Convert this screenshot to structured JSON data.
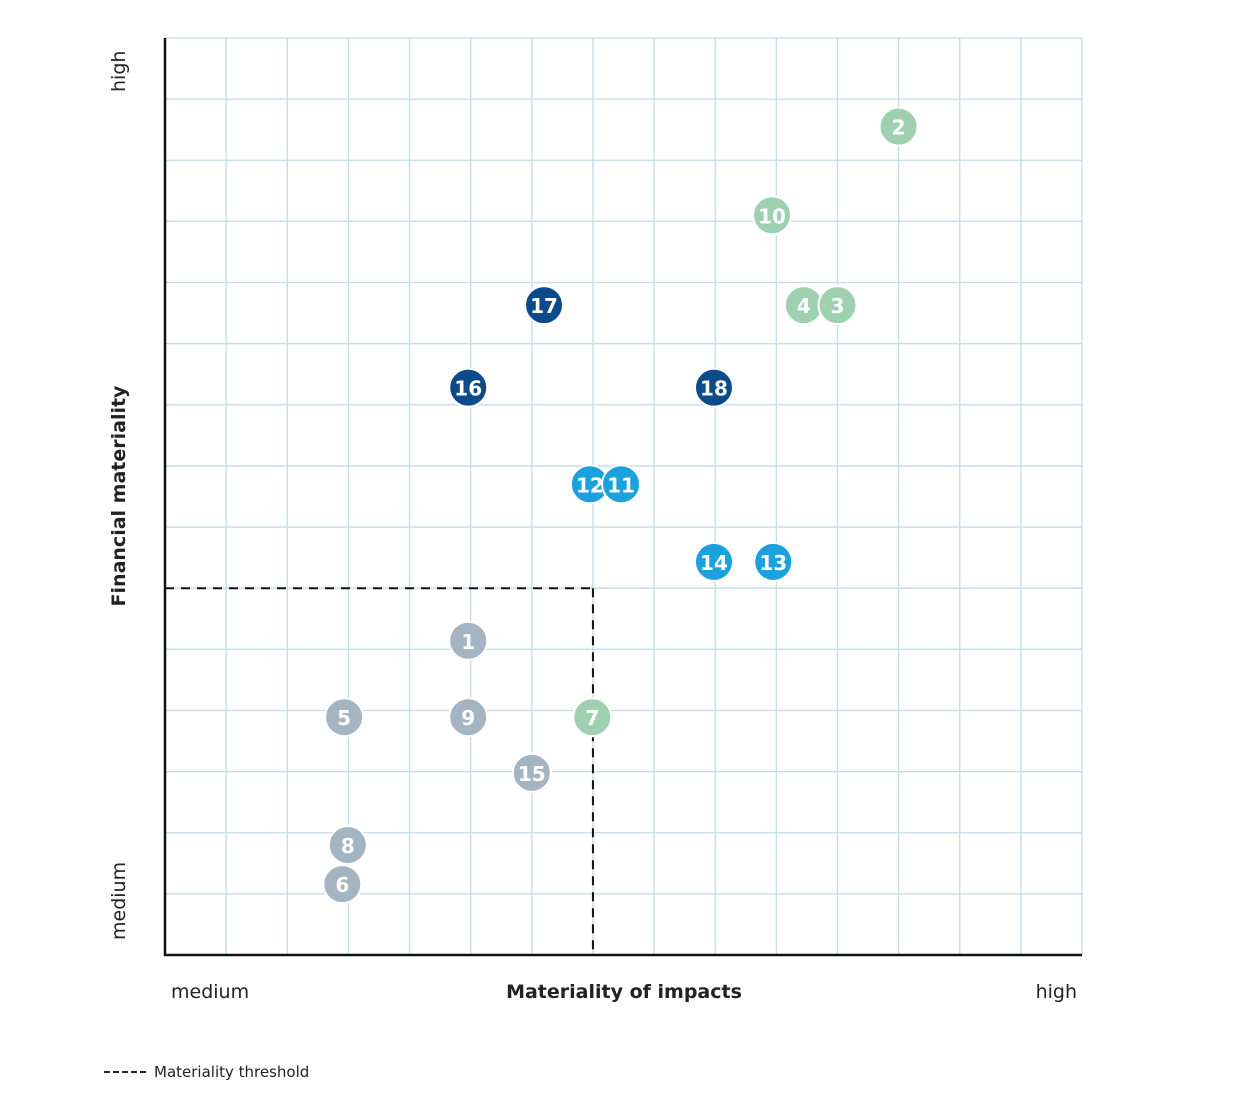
{
  "chart_data": {
    "type": "scatter",
    "title": "",
    "xlabel": "Materiality of impacts",
    "ylabel": "Financial materiality",
    "x_tick_labels": {
      "low_end": "medium",
      "high_end": "high"
    },
    "y_tick_labels": {
      "low_end": "medium",
      "high_end": "high"
    },
    "xlim": [
      0,
      15
    ],
    "ylim": [
      0,
      15
    ],
    "grid": true,
    "threshold": {
      "label": "Materiality threshold",
      "x": 7,
      "y": 6,
      "style": "dashed"
    },
    "legend_position": "bottom-left",
    "colors": {
      "green": "#9fd0b0",
      "navy": "#0b4a8b",
      "cyan": "#1ba1dd",
      "gray": "#a5b4c2",
      "grid": "#c5dbe6"
    },
    "points": [
      {
        "label": "2",
        "x": 12.0,
        "y": 13.55,
        "color": "green"
      },
      {
        "label": "10",
        "x": 9.93,
        "y": 12.1,
        "color": "green"
      },
      {
        "label": "4",
        "x": 10.45,
        "y": 10.63,
        "color": "green"
      },
      {
        "label": "3",
        "x": 11.0,
        "y": 10.63,
        "color": "green"
      },
      {
        "label": "17",
        "x": 6.2,
        "y": 10.63,
        "color": "navy"
      },
      {
        "label": "16",
        "x": 4.96,
        "y": 9.28,
        "color": "navy"
      },
      {
        "label": "18",
        "x": 8.98,
        "y": 9.28,
        "color": "navy"
      },
      {
        "label": "12",
        "x": 6.95,
        "y": 7.7,
        "color": "cyan"
      },
      {
        "label": "11",
        "x": 7.46,
        "y": 7.7,
        "color": "cyan"
      },
      {
        "label": "14",
        "x": 8.98,
        "y": 6.43,
        "color": "cyan"
      },
      {
        "label": "13",
        "x": 9.95,
        "y": 6.43,
        "color": "cyan"
      },
      {
        "label": "1",
        "x": 4.96,
        "y": 5.14,
        "color": "gray"
      },
      {
        "label": "5",
        "x": 2.93,
        "y": 3.89,
        "color": "gray"
      },
      {
        "label": "9",
        "x": 4.96,
        "y": 3.89,
        "color": "gray"
      },
      {
        "label": "7",
        "x": 6.99,
        "y": 3.89,
        "color": "green"
      },
      {
        "label": "15",
        "x": 6.0,
        "y": 2.98,
        "color": "gray"
      },
      {
        "label": "8",
        "x": 2.99,
        "y": 1.8,
        "color": "gray"
      },
      {
        "label": "6",
        "x": 2.9,
        "y": 1.16,
        "color": "gray"
      }
    ]
  }
}
